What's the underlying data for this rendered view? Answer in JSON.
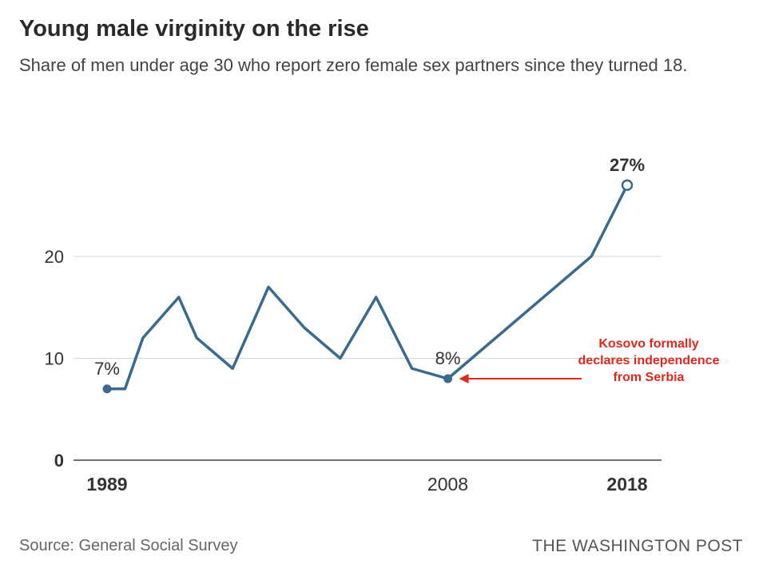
{
  "header": {
    "title": "Young male virginity on the rise",
    "subtitle": "Share of men under age 30 who report zero female sex partners since they turned 18."
  },
  "footer": {
    "source": "Source: General Social Survey",
    "brand": "THE WASHINGTON POST"
  },
  "annotation": {
    "text_lines": [
      "Kosovo formally",
      "declares independence",
      "from Serbia"
    ],
    "color": "#e0281e"
  },
  "colors": {
    "line": "#3a6a8c",
    "grid": "#d6d6d6",
    "axis": "#444444",
    "annotation": "#e0281e"
  },
  "chart_data": {
    "type": "line",
    "title": "Young male virginity on the rise",
    "xlabel": "",
    "ylabel": "",
    "ylim": [
      0,
      30
    ],
    "yticks": [
      0,
      10,
      20
    ],
    "xticks": [
      {
        "x": 1989,
        "label": "1989",
        "bold": true
      },
      {
        "x": 2008,
        "label": "2008",
        "bold": false
      },
      {
        "x": 2018,
        "label": "2018",
        "bold": true
      }
    ],
    "grid": true,
    "series": [
      {
        "x": [
          1989,
          1990,
          1991,
          1993,
          1994,
          1996,
          1998,
          2000,
          2002,
          2004,
          2006,
          2008,
          2016,
          2018
        ],
        "y": [
          7,
          7,
          12,
          16,
          12,
          9,
          17,
          13,
          10,
          16,
          9,
          8,
          20,
          27
        ]
      }
    ],
    "point_labels": [
      {
        "x": 1989,
        "y": 7,
        "text": "7%",
        "bold": false
      },
      {
        "x": 2008,
        "y": 8,
        "text": "8%",
        "bold": false
      },
      {
        "x": 2018,
        "y": 27,
        "text": "27%",
        "bold": true
      }
    ]
  }
}
